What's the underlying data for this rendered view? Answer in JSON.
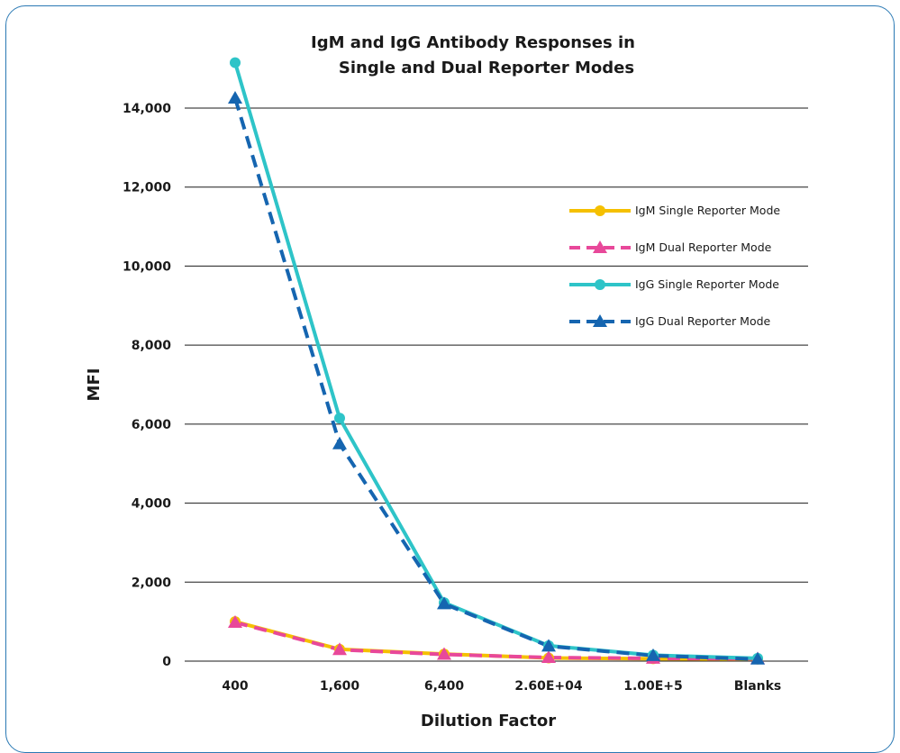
{
  "chart_data": {
    "type": "line",
    "title_lines": [
      "IgM and IgG Antibody Responses in",
      "Single and Dual Reporter Modes"
    ],
    "xlabel": "Dilution Factor",
    "ylabel": "MFI",
    "categories": [
      "400",
      "1,600",
      "6,400",
      "2.60E+04",
      "1.00E+5",
      "Blanks"
    ],
    "ylim": [
      0,
      14000
    ],
    "yticks": [
      0,
      2000,
      4000,
      6000,
      8000,
      10000,
      12000,
      14000
    ],
    "ytick_labels": [
      "0",
      "2,000",
      "4,000",
      "6,000",
      "8,000",
      "10,000",
      "12,000",
      "14,000"
    ],
    "grid": "horizontal",
    "legend_position": "right",
    "series": [
      {
        "name": "IgM Single Reporter Mode",
        "values": [
          1000,
          300,
          180,
          80,
          60,
          50
        ],
        "color": "#f5c000",
        "marker": "circle",
        "dashed": false
      },
      {
        "name": "IgM Dual Reporter Mode",
        "values": [
          980,
          290,
          170,
          90,
          70,
          60
        ],
        "color": "#e8489a",
        "marker": "triangle",
        "dashed": true
      },
      {
        "name": "IgG Single Reporter Mode",
        "values": [
          15150,
          6150,
          1480,
          390,
          150,
          70
        ],
        "color": "#2ec4c8",
        "marker": "circle",
        "dashed": false
      },
      {
        "name": "IgG Dual Reporter Mode",
        "values": [
          14250,
          5500,
          1450,
          380,
          140,
          50
        ],
        "color": "#1565b0",
        "marker": "triangle",
        "dashed": true
      }
    ]
  }
}
